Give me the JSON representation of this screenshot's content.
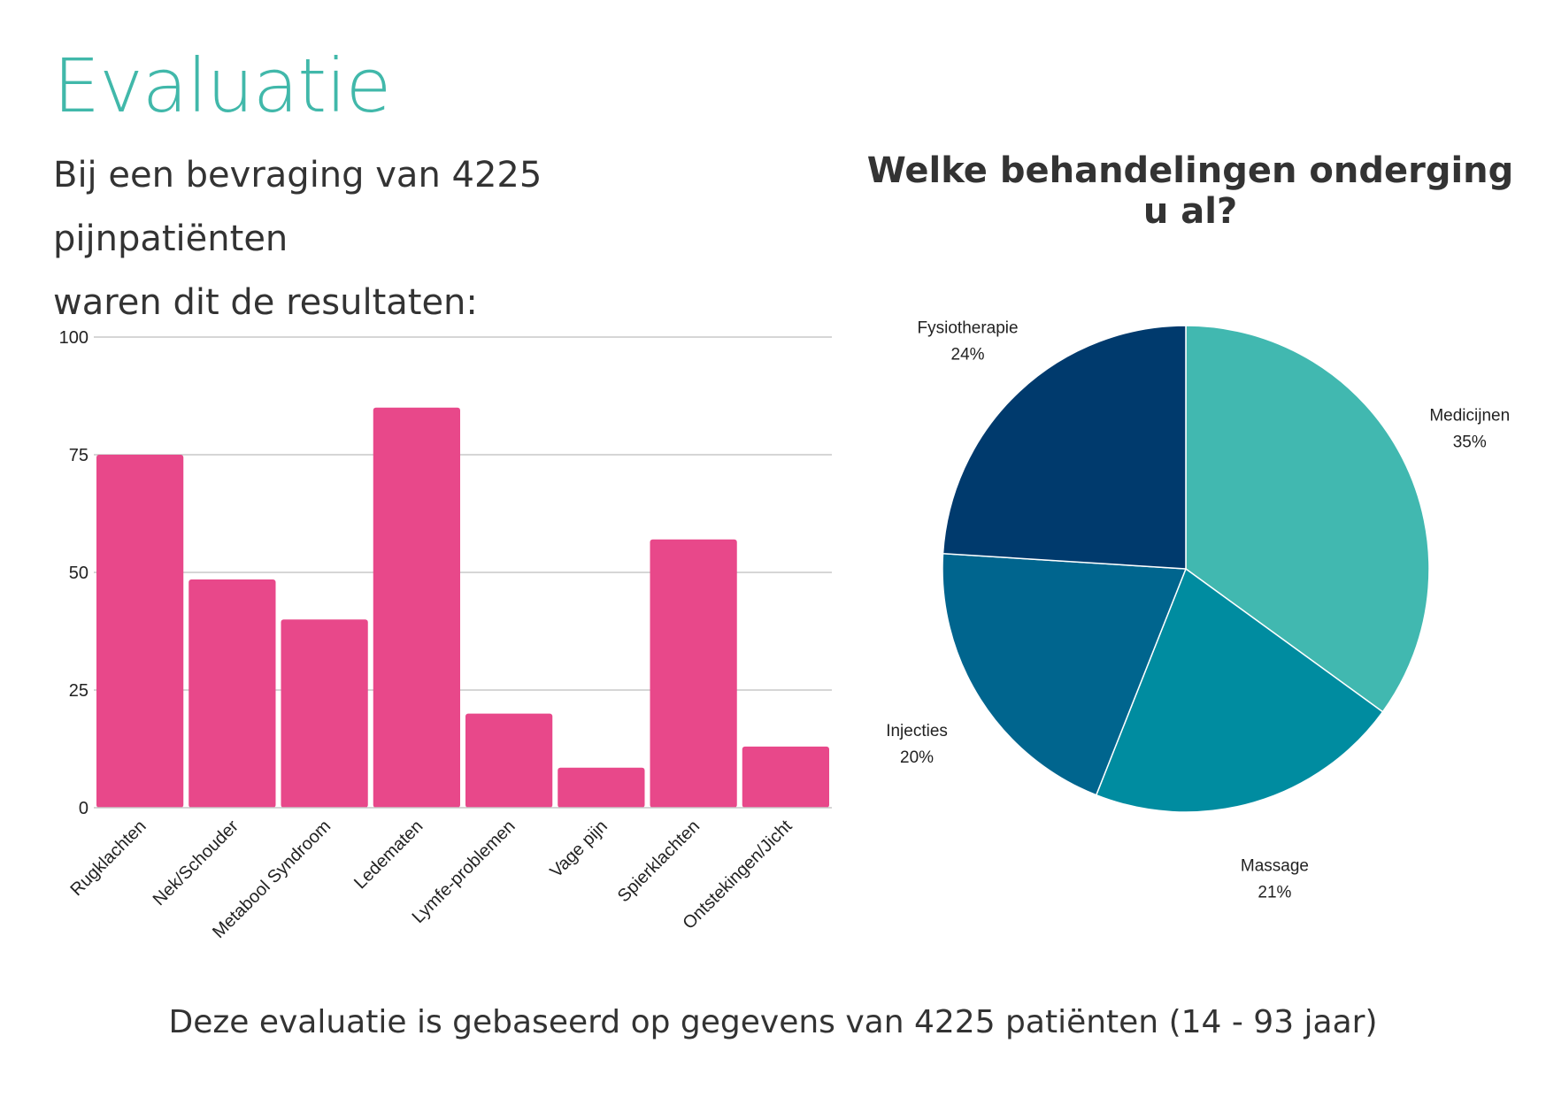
{
  "page": {
    "title": "Evaluatie",
    "intro_line1": "Bij een bevraging van 4225 pijnpatiënten",
    "intro_line2": "waren dit de resultaten:",
    "footer": "Deze evaluatie is gebaseerd op gegevens van 4225 patiënten (14 - 93 jaar)"
  },
  "colors": {
    "title": "#41b8aa",
    "bar": "#e8488a",
    "grid": "#c8c8c8"
  },
  "chart_data": [
    {
      "type": "bar",
      "title": "",
      "categories": [
        "Rugklachten",
        "Nek/Schouder",
        "Metabool Syndroom",
        "Ledematen",
        "Lymfe-problemen",
        "Vage pijn",
        "Spierklachten",
        "Ontstekingen/Jicht"
      ],
      "values": [
        75,
        48.5,
        40,
        85,
        20,
        8.5,
        57,
        13
      ],
      "ylim": [
        0,
        100
      ],
      "yticks": [
        0,
        25,
        50,
        75,
        100
      ],
      "xlabel": "",
      "ylabel": "",
      "grid": true,
      "bar_color": "#e8488a"
    },
    {
      "type": "pie",
      "title": "Welke behandelingen onderging u al?",
      "slices": [
        {
          "label": "Medicijnen",
          "value": 35,
          "pct_label": "35%",
          "color": "#41b8b0"
        },
        {
          "label": "Massage",
          "value": 21,
          "pct_label": "21%",
          "color": "#008ca0"
        },
        {
          "label": "Injecties",
          "value": 20,
          "pct_label": "20%",
          "color": "#00658e"
        },
        {
          "label": "Fysiotherapie",
          "value": 24,
          "pct_label": "24%",
          "color": "#003a6d"
        }
      ],
      "start": "12 o'clock, clockwise",
      "legend": "none"
    }
  ]
}
